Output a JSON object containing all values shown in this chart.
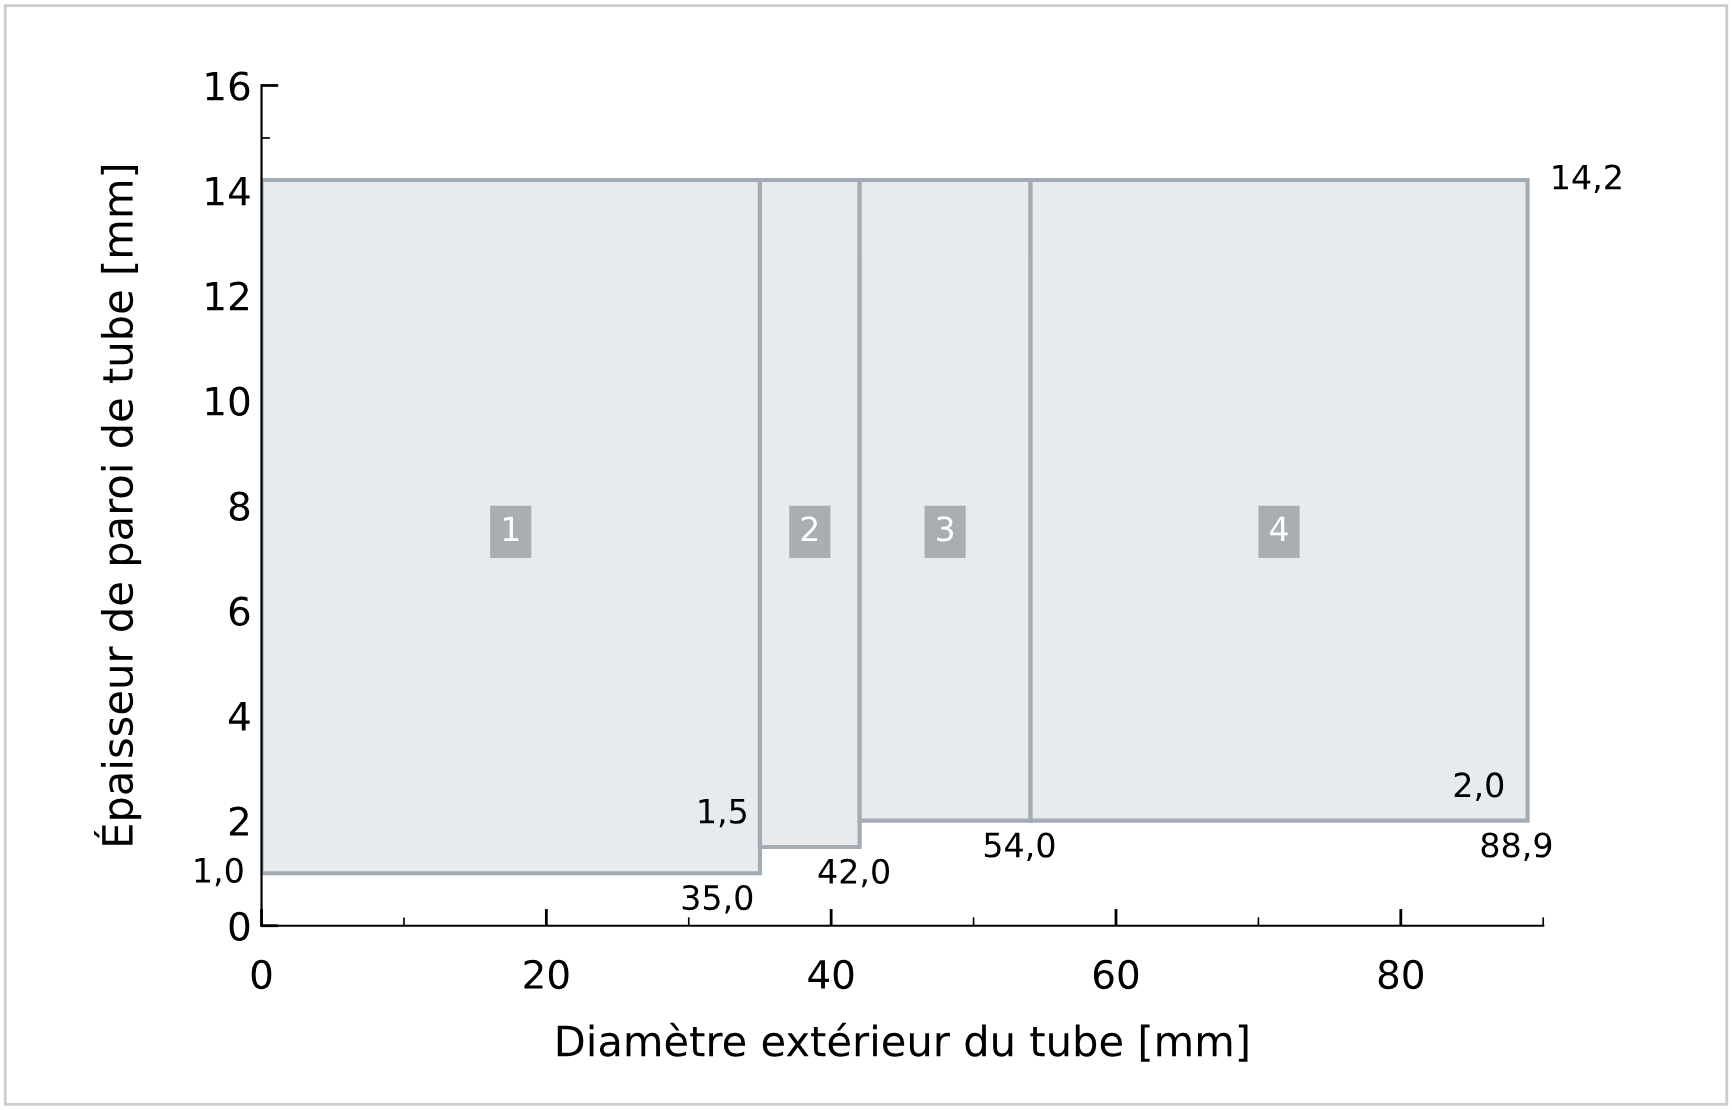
{
  "chart_data": {
    "type": "histogram",
    "xlabel": "Diamètre extérieur du tube [mm]",
    "ylabel": "Épaisseur de paroi de tube [mm]",
    "bins": [
      0,
      35.0,
      42.0,
      54.0,
      88.9
    ],
    "base": [
      1.0,
      1.5,
      2.0,
      2.0
    ],
    "values": [
      13.2,
      12.7,
      12.2,
      12.2
    ],
    "color": "#e8ebee",
    "annotations": [
      {
        "text": "1",
        "x": 17.5,
        "y": 7.5
      },
      {
        "text": "2",
        "x": 38.5,
        "y": 7.5
      },
      {
        "text": "3",
        "x": 48.0,
        "y": 7.5
      },
      {
        "text": "4",
        "x": 71.45,
        "y": 7.5
      },
      {
        "text": "1,0",
        "x": 0,
        "y": 1.0
      },
      {
        "text": "1,5",
        "x": 35.0,
        "y": 1.5
      },
      {
        "text": "35,0",
        "x": 35.0,
        "y": 1.0
      },
      {
        "text": "42,0",
        "x": 42.0,
        "y": 1.5
      },
      {
        "text": "54,0",
        "x": 54.0,
        "y": 2.0
      },
      {
        "text": "2,0",
        "x": 88.9,
        "y": 2.0
      },
      {
        "text": "88,9",
        "x": 88.9,
        "y": 2.0
      },
      {
        "text": "14,2",
        "x": 88.9,
        "y": 14.2
      }
    ],
    "xlim": [
      0,
      90
    ],
    "xticks": [
      0,
      20,
      40,
      60,
      80
    ],
    "ylim": [
      0,
      16
    ],
    "yticks": [
      0,
      2,
      4,
      6,
      8,
      10,
      12,
      14,
      16
    ],
    "grid": false,
    "legend": false
  }
}
